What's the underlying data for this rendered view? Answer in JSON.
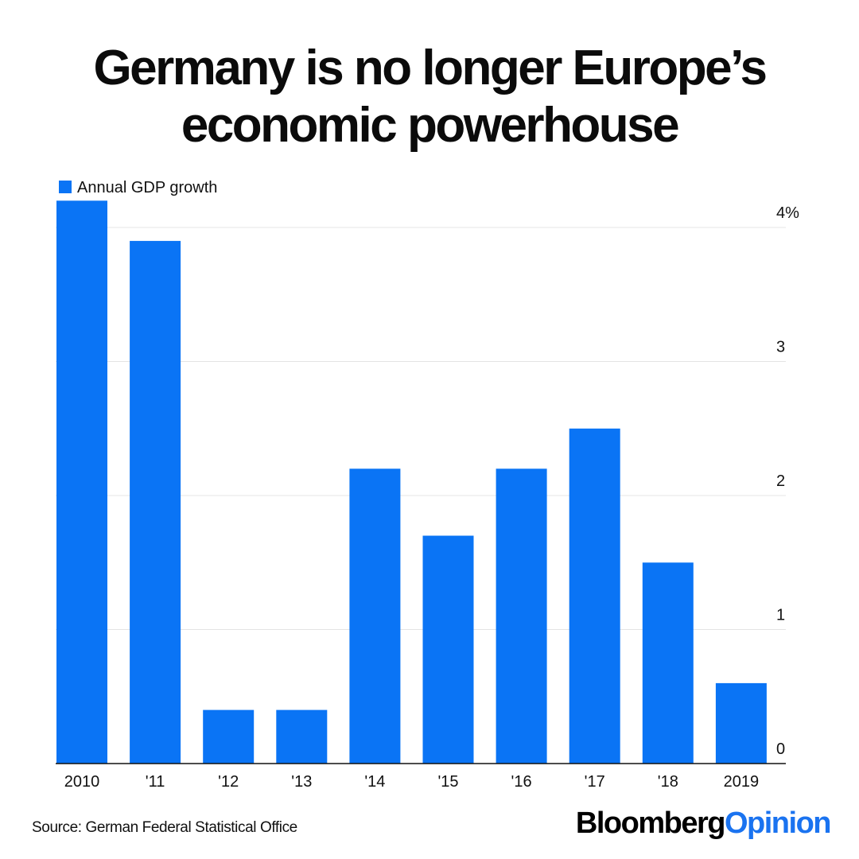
{
  "title": {
    "line1": "Germany is no longer Europe’s",
    "line2": "economic powerhouse"
  },
  "chart_data": {
    "type": "bar",
    "categories": [
      "2010",
      "'11",
      "'12",
      "'13",
      "'14",
      "'15",
      "'16",
      "'17",
      "'18",
      "2019"
    ],
    "series": [
      {
        "name": "Annual GDP growth",
        "values": [
          4.2,
          3.9,
          0.4,
          0.4,
          2.2,
          1.7,
          2.2,
          2.5,
          1.5,
          0.6
        ]
      }
    ],
    "yticks": [
      {
        "value": 0,
        "label": "0"
      },
      {
        "value": 1,
        "label": "1"
      },
      {
        "value": 2,
        "label": "2"
      },
      {
        "value": 3,
        "label": "3"
      },
      {
        "value": 4,
        "label": "4%"
      }
    ],
    "ylim": [
      0,
      4.3
    ],
    "grid": true,
    "legend": "top-left",
    "y_axis_side": "right",
    "bar_color": "#0a74f5"
  },
  "footer": {
    "source": "Source: German Federal Statistical Office",
    "brand_part1": "Bloomberg",
    "brand_part2": "Opinion"
  }
}
